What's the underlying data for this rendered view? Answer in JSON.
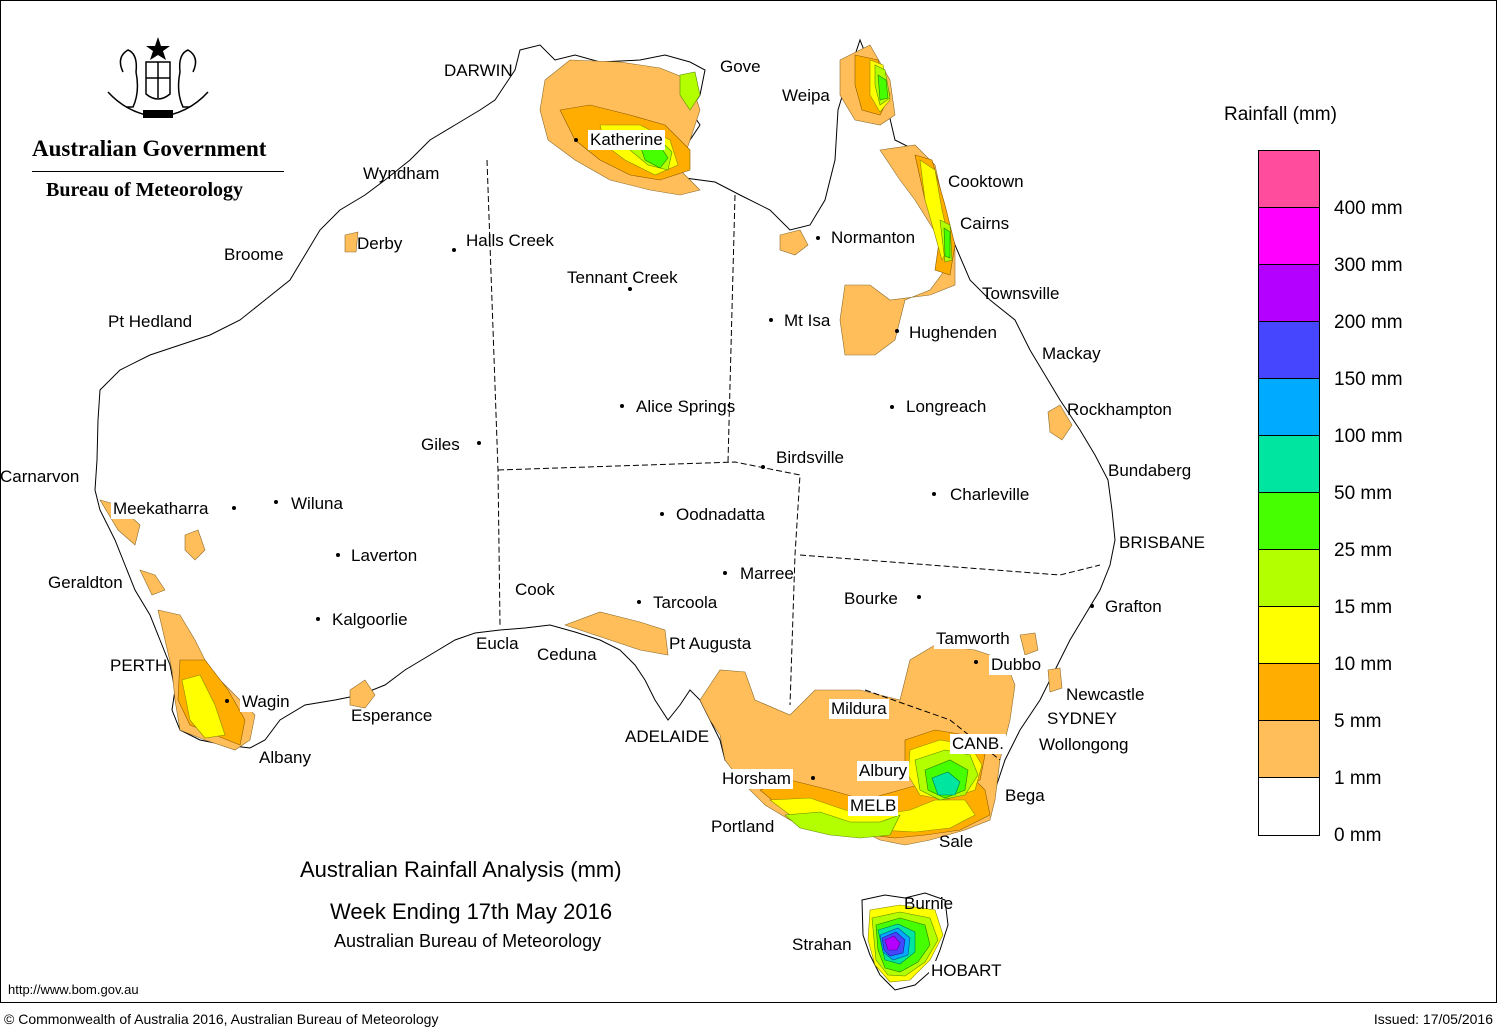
{
  "header": {
    "government": "Australian Government",
    "bureau": "Bureau of Meteorology"
  },
  "title": {
    "line1": "Australian Rainfall Analysis (mm)",
    "line2": "Week Ending 17th May 2016",
    "line3": "Australian Bureau of Meteorology"
  },
  "footer": {
    "url": "http://www.bom.gov.au",
    "copyright": "© Commonwealth of Australia 2016, Australian Bureau of Meteorology",
    "issued": "Issued: 17/05/2016"
  },
  "legend": {
    "title": "Rainfall (mm)",
    "colors": [
      "#ff4c9c",
      "#ff00ff",
      "#b300ff",
      "#4646ff",
      "#00aaff",
      "#00e6a0",
      "#46ff00",
      "#b3ff00",
      "#ffff00",
      "#ffad00",
      "#ffbe5a",
      "#ffffff"
    ],
    "labels": [
      "400 mm",
      "300 mm",
      "200 mm",
      "150 mm",
      "100 mm",
      "50 mm",
      "25 mm",
      "15 mm",
      "10 mm",
      "5 mm",
      "1 mm",
      "0 mm"
    ]
  },
  "places": {
    "darwin": "DARWIN",
    "gove": "Gove",
    "weipa": "Weipa",
    "katherine": "Katherine",
    "wyndham": "Wyndham",
    "cooktown": "Cooktown",
    "cairns": "Cairns",
    "derby": "Derby",
    "halls_creek": "Halls Creek",
    "broome": "Broome",
    "normanton": "Normanton",
    "tennant_creek": "Tennant Creek",
    "townsville": "Townsville",
    "pt_hedland": "Pt Hedland",
    "mt_isa": "Mt Isa",
    "hughenden": "Hughenden",
    "mackay": "Mackay",
    "alice_springs": "Alice Springs",
    "longreach": "Longreach",
    "rockhampton": "Rockhampton",
    "giles": "Giles",
    "birdsville": "Birdsville",
    "carnarvon": "Carnarvon",
    "bundaberg": "Bundaberg",
    "wiluna": "Wiluna",
    "charleville": "Charleville",
    "meekatharra": "Meekatharra",
    "oodnadatta": "Oodnadatta",
    "brisbane": "BRISBANE",
    "laverton": "Laverton",
    "marree": "Marree",
    "geraldton": "Geraldton",
    "cook": "Cook",
    "bourke": "Bourke",
    "tarcoola": "Tarcoola",
    "grafton": "Grafton",
    "kalgoorlie": "Kalgoorlie",
    "tamworth": "Tamworth",
    "pt_augusta": "Pt Augusta",
    "eucla": "Eucla",
    "ceduna": "Ceduna",
    "dubbo": "Dubbo",
    "perth": "PERTH",
    "newcastle": "Newcastle",
    "wagin": "Wagin",
    "mildura": "Mildura",
    "sydney": "SYDNEY",
    "esperance": "Esperance",
    "adelaide": "ADELAIDE",
    "canberra": "CANB.",
    "wollongong": "Wollongong",
    "albany": "Albany",
    "horsham": "Horsham",
    "albury": "Albury",
    "melbourne": "MELB",
    "bega": "Bega",
    "portland": "Portland",
    "sale": "Sale",
    "burnie": "Burnie",
    "strahan": "Strahan",
    "hobart": "HOBART"
  }
}
